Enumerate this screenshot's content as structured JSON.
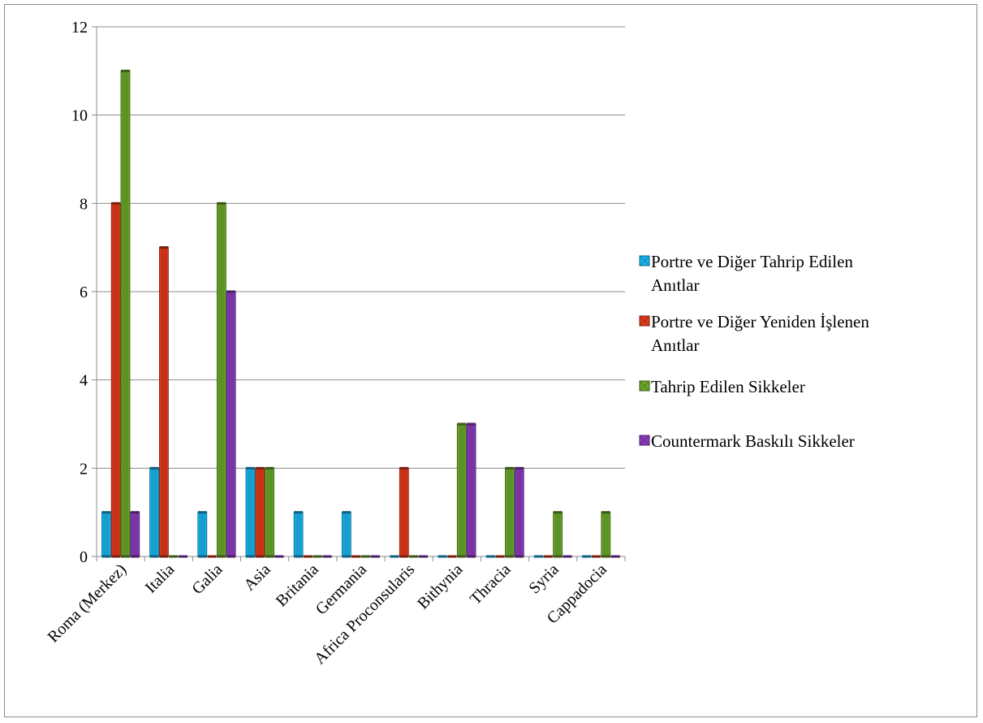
{
  "chart_data": {
    "type": "bar",
    "categories": [
      "Roma (Merkez)",
      "Italia",
      "Galia",
      "Asia",
      "Britania",
      "Germania",
      "Africa Proconsularis",
      "Bithynia",
      "Thracia",
      "Syria",
      "Cappadocia"
    ],
    "series": [
      {
        "name": "Portre ve Diğer Tahrip Edilen Anıtlar",
        "legend_lines": [
          "Portre ve Diğer Tahrip Edilen",
          "Anıtlar"
        ],
        "color": "#18b4ec",
        "values": [
          1,
          2,
          1,
          2,
          1,
          1,
          0,
          0,
          0,
          0,
          0
        ]
      },
      {
        "name": "Portre ve Diğer Yeniden İşlenen Anıtlar",
        "legend_lines": [
          "Portre ve Diğer Yeniden İşlenen",
          "Anıtlar"
        ],
        "color": "#e0391b",
        "values": [
          8,
          7,
          0,
          2,
          0,
          0,
          2,
          0,
          0,
          0,
          0
        ]
      },
      {
        "name": "Tahrip Edilen Sikkeler",
        "legend_lines": [
          "Tahrip Edilen Sikkeler"
        ],
        "color": "#6aa62a",
        "values": [
          11,
          0,
          8,
          2,
          0,
          0,
          0,
          3,
          2,
          1,
          1
        ]
      },
      {
        "name": "Countermark Baskılı Sikkeler",
        "legend_lines": [
          "Countermark Baskılı Sikkeler"
        ],
        "color": "#8a3bbd",
        "values": [
          1,
          0,
          6,
          0,
          0,
          0,
          0,
          3,
          2,
          0,
          0
        ]
      }
    ],
    "yticks": [
      0,
      2,
      4,
      6,
      8,
      10,
      12
    ],
    "ylim": [
      0,
      12
    ],
    "grid": true,
    "legend_position": "right"
  }
}
